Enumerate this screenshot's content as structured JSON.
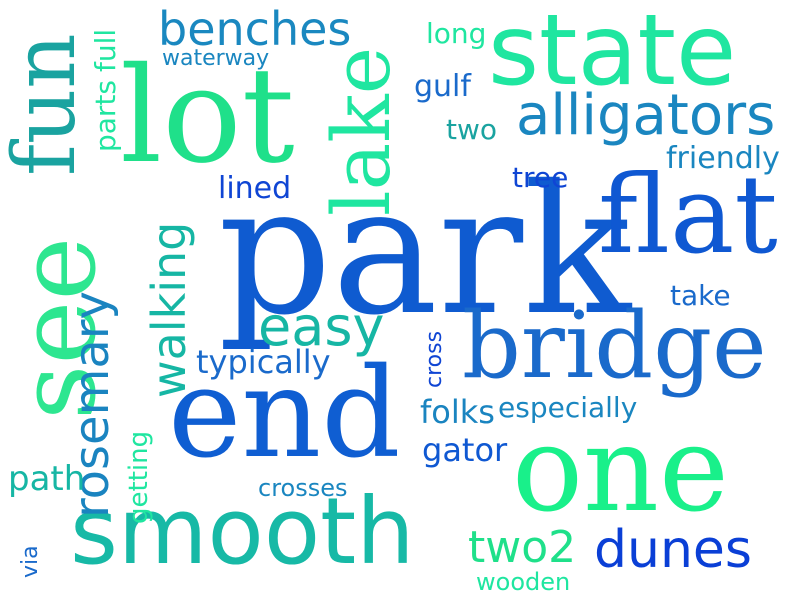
{
  "words": {
    "park": {
      "text": "park",
      "color": "#0f5bd0"
    },
    "end": {
      "text": "end",
      "color": "#0f5ed2"
    },
    "one": {
      "text": "one",
      "color": "#19f08a"
    },
    "lot": {
      "text": "lot",
      "color": "#1fe08a"
    },
    "state": {
      "text": "state",
      "color": "#1fe6a0"
    },
    "flat": {
      "text": "flat",
      "color": "#0f58d2"
    },
    "bridge": {
      "text": "bridge",
      "color": "#1a6acb"
    },
    "smooth": {
      "text": "smooth",
      "color": "#17b9a6"
    },
    "see": {
      "text": "see",
      "color": "#2de690"
    },
    "fun": {
      "text": "fun",
      "color": "#1aa3a0"
    },
    "lake": {
      "text": "lake",
      "color": "#1fe6a0"
    },
    "alligators": {
      "text": "alligators",
      "color": "#1a86c0"
    },
    "dunes": {
      "text": "dunes",
      "color": "#0a3fd6"
    },
    "benches": {
      "text": "benches",
      "color": "#1a88c0"
    },
    "easy": {
      "text": "easy",
      "color": "#16b6a4"
    },
    "rosemary": {
      "text": "rosemary",
      "color": "#1a84c0"
    },
    "walking": {
      "text": "walking",
      "color": "#16b6a4"
    },
    "two2": {
      "text": "two2",
      "color": "#1fe08a"
    },
    "friendly": {
      "text": "friendly",
      "color": "#1a86c0"
    },
    "lined": {
      "text": "lined",
      "color": "#0f45d4"
    },
    "typically": {
      "text": "typically",
      "color": "#1a6acb"
    },
    "folks": {
      "text": "folks",
      "color": "#1a84c0"
    },
    "especially": {
      "text": "especially",
      "color": "#1a86c0"
    },
    "gator": {
      "text": "gator",
      "color": "#0f58d2"
    },
    "long": {
      "text": "long",
      "color": "#1fe6a0"
    },
    "gulf": {
      "text": "gulf",
      "color": "#1a6acb"
    },
    "two": {
      "text": "two",
      "color": "#1aa3a0"
    },
    "tree": {
      "text": "tree",
      "color": "#0f45d4"
    },
    "take": {
      "text": "take",
      "color": "#1a6acb"
    },
    "parts": {
      "text": "parts",
      "color": "#1fe6a0"
    },
    "full": {
      "text": "full",
      "color": "#1fe6a0"
    },
    "waterway": {
      "text": "waterway",
      "color": "#1a86c0"
    },
    "path": {
      "text": "path",
      "color": "#16b6a4"
    },
    "getting": {
      "text": "getting",
      "color": "#1fe6a0"
    },
    "crosses": {
      "text": "crosses",
      "color": "#1a86c0"
    },
    "cross": {
      "text": "cross",
      "color": "#0f45d4"
    },
    "via": {
      "text": "via",
      "color": "#1a6acb"
    },
    "wooden": {
      "text": "wooden",
      "color": "#1fe6a0"
    }
  }
}
